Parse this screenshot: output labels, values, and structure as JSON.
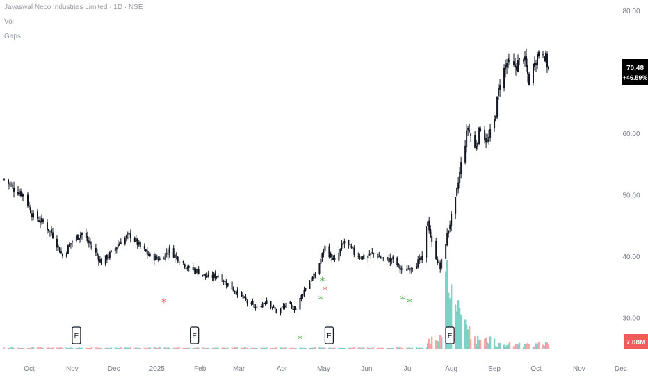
{
  "legend": {
    "title": "Jayaswal Neco Industries Limited · 1D · NSE",
    "vol": "Vol",
    "gaps": "Gaps"
  },
  "colors": {
    "candle": "#131722",
    "vol_up": "#7fd0c7",
    "vol_down": "#f5a6a6",
    "gap_up": "#4caf50",
    "gap_down": "#f06262",
    "price_badge_bg": "#000000",
    "vol_badge_bg": "#f15b5b",
    "axis_text": "#787b86"
  },
  "price_badge": {
    "price": "70.48",
    "change": "+46.59%"
  },
  "volume_badge": "7.08M",
  "earnings_marker": "E",
  "chart_data": {
    "type": "candlestick",
    "title": "Jayaswal Neco Industries Limited · 1D · NSE",
    "x_ticks": [
      "Oct",
      "Nov",
      "Dec",
      "2025",
      "Feb",
      "Mar",
      "Apr",
      "May",
      "Jun",
      "Jul",
      "Aug",
      "Sep",
      "Oct",
      "Nov",
      "Dec"
    ],
    "y_ticks": [
      "80.00",
      "60.00",
      "50.00",
      "40.00",
      "30.00"
    ],
    "ylim": [
      25.5,
      80.0
    ],
    "last_price": 70.48,
    "change_pct": "+46.59%",
    "last_volume": "7.08M",
    "anchors": [
      [
        "2024-09-13",
        52.5
      ],
      [
        "2024-09-20",
        51.0
      ],
      [
        "2024-09-27",
        50.0
      ],
      [
        "2024-10-04",
        46.5
      ],
      [
        "2024-10-11",
        45.5
      ],
      [
        "2024-10-18",
        43.5
      ],
      [
        "2024-10-25",
        40.0
      ],
      [
        "2024-11-01",
        42.5
      ],
      [
        "2024-11-08",
        43.8
      ],
      [
        "2024-11-15",
        41.5
      ],
      [
        "2024-11-22",
        39.0
      ],
      [
        "2024-11-29",
        40.5
      ],
      [
        "2024-12-06",
        42.5
      ],
      [
        "2024-12-13",
        43.5
      ],
      [
        "2024-12-20",
        41.5
      ],
      [
        "2024-12-27",
        40.0
      ],
      [
        "2025-01-03",
        39.5
      ],
      [
        "2025-01-10",
        41.0
      ],
      [
        "2025-01-17",
        39.5
      ],
      [
        "2025-01-24",
        38.0
      ],
      [
        "2025-01-31",
        37.5
      ],
      [
        "2025-02-07",
        36.5
      ],
      [
        "2025-02-14",
        37.0
      ],
      [
        "2025-02-21",
        35.5
      ],
      [
        "2025-02-28",
        34.0
      ],
      [
        "2025-03-07",
        32.5
      ],
      [
        "2025-03-14",
        31.5
      ],
      [
        "2025-03-21",
        33.0
      ],
      [
        "2025-03-28",
        31.0
      ],
      [
        "2025-04-04",
        32.0
      ],
      [
        "2025-04-11",
        31.5
      ],
      [
        "2025-04-18",
        35.0
      ],
      [
        "2025-04-25",
        37.0
      ],
      [
        "2025-05-02",
        41.5
      ],
      [
        "2025-05-09",
        39.0
      ],
      [
        "2025-05-16",
        42.5
      ],
      [
        "2025-05-23",
        40.5
      ],
      [
        "2025-05-30",
        39.8
      ],
      [
        "2025-06-06",
        40.5
      ],
      [
        "2025-06-13",
        39.5
      ],
      [
        "2025-06-20",
        39.5
      ],
      [
        "2025-06-27",
        37.5
      ],
      [
        "2025-07-04",
        38.5
      ],
      [
        "2025-07-11",
        39.5
      ],
      [
        "2025-07-15",
        46.0
      ],
      [
        "2025-07-18",
        42.0
      ],
      [
        "2025-07-24",
        38.0
      ],
      [
        "2025-07-30",
        44.5
      ],
      [
        "2025-08-04",
        49.0
      ],
      [
        "2025-08-08",
        55.0
      ],
      [
        "2025-08-13",
        61.0
      ],
      [
        "2025-08-18",
        57.5
      ],
      [
        "2025-08-22",
        61.0
      ],
      [
        "2025-08-27",
        58.5
      ],
      [
        "2025-09-01",
        62.0
      ],
      [
        "2025-09-05",
        68.5
      ],
      [
        "2025-09-10",
        71.5
      ],
      [
        "2025-09-15",
        70.5
      ],
      [
        "2025-09-22",
        72.5
      ],
      [
        "2025-09-26",
        68.5
      ],
      [
        "2025-10-01",
        72.5
      ],
      [
        "2025-10-06",
        73.5
      ],
      [
        "2025-10-10",
        70.48
      ]
    ],
    "volume_spikes": [
      [
        "2025-07-29",
        1.0
      ],
      [
        "2025-07-31",
        0.7
      ],
      [
        "2025-08-04",
        0.6
      ],
      [
        "2025-08-06",
        0.5
      ],
      [
        "2025-08-08",
        0.42
      ],
      [
        "2025-08-11",
        0.3
      ],
      [
        "2025-08-13",
        0.25
      ]
    ],
    "gaps": [
      {
        "date": "2025-01-06",
        "price": 32.5,
        "dir": "down"
      },
      {
        "date": "2025-04-14",
        "price": 26.5,
        "dir": "up"
      },
      {
        "date": "2025-04-29",
        "price": 33.0,
        "dir": "up"
      },
      {
        "date": "2025-04-30",
        "price": 36.0,
        "dir": "up"
      },
      {
        "date": "2025-05-02",
        "price": 34.5,
        "dir": "down"
      },
      {
        "date": "2025-06-27",
        "price": 33.0,
        "dir": "up"
      },
      {
        "date": "2025-07-02",
        "price": 32.5,
        "dir": "up"
      }
    ],
    "earnings": [
      "2024-11-04",
      "2025-01-28",
      "2025-05-05",
      "2025-07-31"
    ]
  }
}
